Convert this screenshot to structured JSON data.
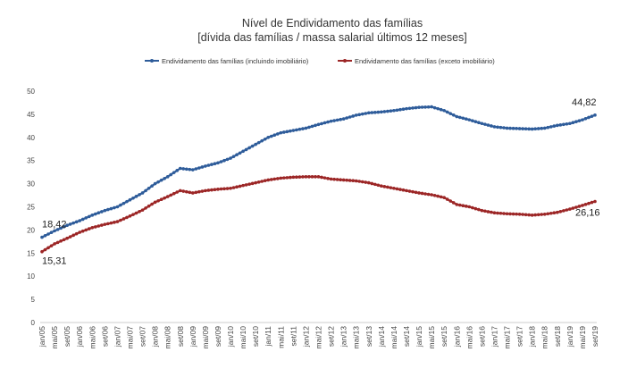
{
  "chart_data": {
    "type": "line",
    "title": "Nível de Endividamento das famílias",
    "subtitle": "[dívida das famílias / massa salarial últimos 12 meses]",
    "xlabel": "",
    "ylabel": "",
    "ylim": [
      0,
      50
    ],
    "yticks": [
      "0",
      "5",
      "10",
      "15",
      "20",
      "25",
      "30",
      "35",
      "40",
      "45",
      "50"
    ],
    "grid": false,
    "legend_position": "top-center",
    "categories": [
      "jan/05",
      "mai/05",
      "set/05",
      "jan/06",
      "mai/06",
      "set/06",
      "jan/07",
      "mai/07",
      "set/07",
      "jan/08",
      "mai/08",
      "set/08",
      "jan/09",
      "mai/09",
      "set/09",
      "jan/10",
      "mai/10",
      "set/10",
      "jan/11",
      "mai/11",
      "set/11",
      "jan/12",
      "mai/12",
      "set/12",
      "jan/13",
      "mai/13",
      "set/13",
      "jan/14",
      "mai/14",
      "set/14",
      "jan/15",
      "mai/15",
      "set/15",
      "jan/16",
      "mai/16",
      "set/16",
      "jan/17",
      "mai/17",
      "set/17",
      "jan/18",
      "mai/18",
      "set/18",
      "jan/19",
      "mai/19",
      "set/19"
    ],
    "series": [
      {
        "name": "Endividamento das famílias (incluindo imobiliário)",
        "color": "#2e5c9a",
        "values": [
          18.42,
          19.8,
          21.0,
          22.0,
          23.2,
          24.2,
          25.0,
          26.5,
          28.0,
          30.0,
          31.5,
          33.3,
          33.0,
          33.8,
          34.5,
          35.5,
          37.0,
          38.5,
          40.0,
          41.0,
          41.5,
          42.0,
          42.8,
          43.5,
          44.0,
          44.8,
          45.3,
          45.5,
          45.8,
          46.2,
          46.5,
          46.6,
          45.8,
          44.5,
          43.8,
          43.0,
          42.3,
          42.0,
          41.9,
          41.8,
          42.0,
          42.6,
          43.0,
          43.8,
          44.82
        ],
        "labels": [
          {
            "index": 0,
            "text": "18,42"
          },
          {
            "index": 44,
            "text": "44,82"
          }
        ]
      },
      {
        "name": "Endividamento das famílias (exceto imobiliário)",
        "color": "#9c2626",
        "values": [
          15.31,
          17.0,
          18.2,
          19.5,
          20.5,
          21.2,
          21.8,
          23.0,
          24.3,
          26.0,
          27.2,
          28.5,
          28.0,
          28.5,
          28.8,
          29.0,
          29.6,
          30.2,
          30.8,
          31.2,
          31.4,
          31.5,
          31.5,
          31.0,
          30.8,
          30.6,
          30.2,
          29.5,
          29.0,
          28.5,
          28.0,
          27.6,
          27.0,
          25.5,
          25.0,
          24.2,
          23.7,
          23.5,
          23.4,
          23.2,
          23.4,
          23.8,
          24.5,
          25.3,
          26.16
        ],
        "labels": [
          {
            "index": 0,
            "text": "15,31"
          },
          {
            "index": 44,
            "text": "26,16"
          }
        ]
      }
    ]
  }
}
